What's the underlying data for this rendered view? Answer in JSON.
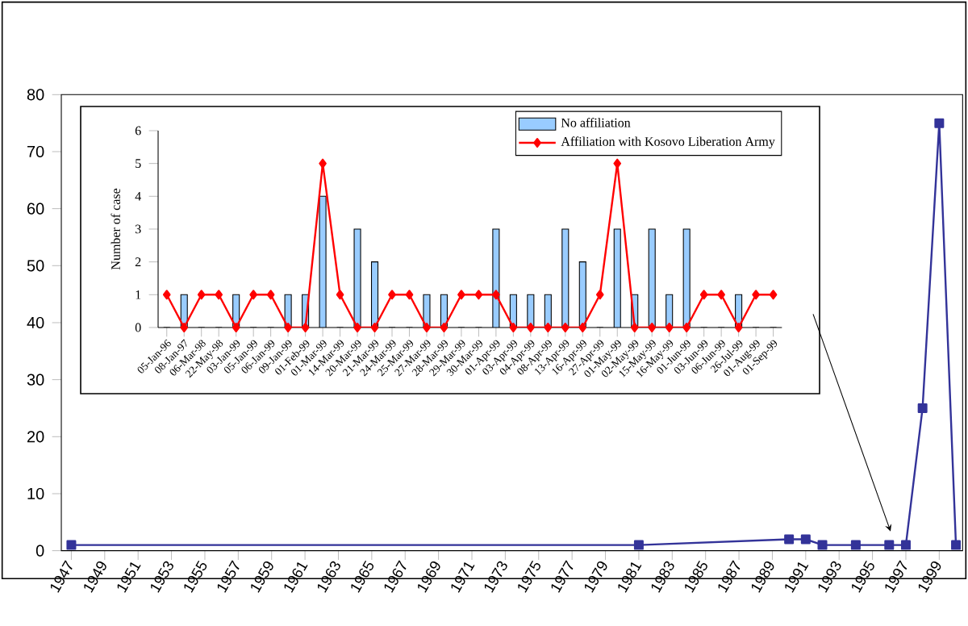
{
  "chart_data": [
    {
      "type": "line",
      "x": [
        1947,
        1981,
        1990,
        1991,
        1992,
        1994,
        1996,
        1997,
        1998,
        1999,
        2000
      ],
      "values": [
        1,
        1,
        2,
        2,
        1,
        1,
        1,
        1,
        25,
        75,
        1
      ],
      "color": "#333399",
      "marker": "square",
      "xlim": [
        1946.4,
        2000.4
      ],
      "xticks": [
        1947,
        1949,
        1951,
        1953,
        1955,
        1957,
        1959,
        1961,
        1963,
        1965,
        1967,
        1969,
        1971,
        1973,
        1975,
        1977,
        1979,
        1981,
        1983,
        1985,
        1987,
        1989,
        1991,
        1993,
        1995,
        1997,
        1999
      ],
      "ylim": [
        0,
        80
      ],
      "yticks": [
        0,
        10,
        20,
        30,
        40,
        50,
        60,
        70,
        80
      ]
    },
    {
      "type": "bar",
      "ylabel": "Number of case",
      "categories": [
        "05-Jan-96",
        "08-Jan-97",
        "06-Mar-98",
        "22-May-98",
        "03-Jan-99",
        "05-Jan-99",
        "06-Jan-99",
        "09-Jan-99",
        "01-Feb-99",
        "01-Mar-99",
        "14-Mar-99",
        "20-Mar-99",
        "21-Mar-99",
        "24-Mar-99",
        "25-Mar-99",
        "27-Mar-99",
        "28-Mar-99",
        "29-Mar-99",
        "30-Mar-99",
        "01-Apr-99",
        "03-Apr-99",
        "04-Apr-99",
        "08-Apr-99",
        "13-Apr-99",
        "16-Apr-99",
        "27-Apr-99",
        "01-May-99",
        "02-May-99",
        "15-May-99",
        "16-May-99",
        "01-Jun-99",
        "03-Jun-99",
        "06-Jun-99",
        "26-Jul-99",
        "01-Aug-99",
        "01-Sep-99"
      ],
      "series": [
        {
          "name": "No affiliation",
          "type": "bar",
          "color": "#99ccff",
          "values": [
            0,
            1,
            0,
            0,
            1,
            0,
            0,
            1,
            1,
            4,
            0,
            3,
            2,
            0,
            0,
            1,
            1,
            0,
            0,
            3,
            1,
            1,
            1,
            3,
            2,
            0,
            3,
            1,
            3,
            1,
            3,
            0,
            0,
            1,
            0,
            0
          ]
        },
        {
          "name": "Affiliation with Kosovo Liberation Army",
          "type": "line",
          "color": "#ff0000",
          "values": [
            1,
            0,
            1,
            1,
            0,
            1,
            1,
            0,
            0,
            5,
            1,
            0,
            0,
            1,
            1,
            0,
            0,
            1,
            1,
            1,
            0,
            0,
            0,
            0,
            0,
            1,
            5,
            0,
            0,
            0,
            0,
            1,
            1,
            0,
            1,
            1
          ]
        }
      ],
      "marker": "diamond",
      "legend": "top right",
      "ylim": [
        0,
        6
      ],
      "yticks": [
        0,
        1,
        2,
        3,
        4,
        5,
        6
      ]
    }
  ]
}
